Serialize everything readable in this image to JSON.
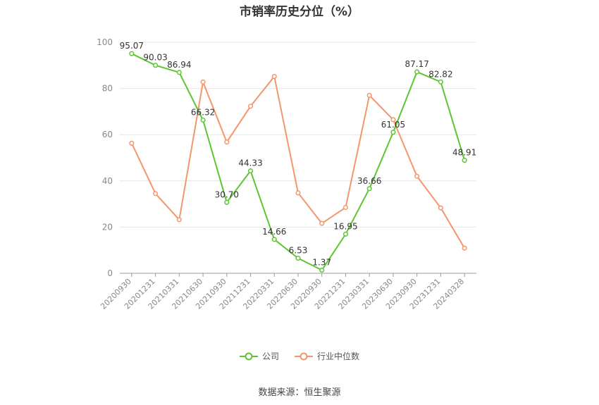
{
  "chart_data": {
    "type": "line",
    "title": "市销率历史分位（%）",
    "categories": [
      "20200930",
      "20201231",
      "20210331",
      "20210630",
      "20210930",
      "20211231",
      "20220331",
      "20220630",
      "20220930",
      "20221231",
      "20230331",
      "20230630",
      "20230930",
      "20231231",
      "20240328"
    ],
    "series": [
      {
        "name": "公司",
        "color": "#5cc531",
        "values": [
          95.07,
          90.03,
          86.94,
          66.32,
          30.7,
          44.33,
          14.66,
          6.53,
          1.37,
          16.95,
          36.66,
          61.05,
          87.17,
          82.82,
          48.91
        ],
        "labels": [
          "95.07",
          "90.03",
          "86.94",
          "66.32",
          "30.70",
          "44.33",
          "14.66",
          "6.53",
          "1.37",
          "16.95",
          "36.66",
          "61.05",
          "87.17",
          "82.82",
          "48.91"
        ]
      },
      {
        "name": "行业中位数",
        "color": "#f4956b",
        "values": [
          56.3,
          34.5,
          23.2,
          82.8,
          56.8,
          72.3,
          85.2,
          34.8,
          21.6,
          28.5,
          77.0,
          66.5,
          42.0,
          28.3,
          10.9
        ]
      }
    ],
    "yticks": [
      0,
      20,
      40,
      60,
      80,
      100
    ],
    "ylim": [
      0,
      100
    ],
    "grid": true,
    "legend_position": "bottom"
  },
  "source": "数据来源：恒生聚源"
}
